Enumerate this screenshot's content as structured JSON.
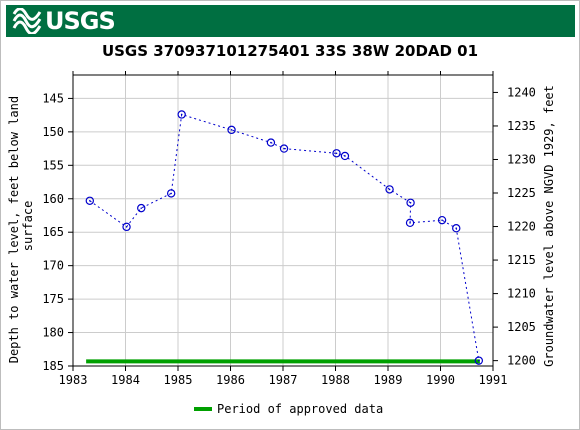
{
  "header": {
    "logo_text": "USGS",
    "brand_color": "#006f41"
  },
  "title": "USGS 370937101275401 33S 38W 20DAD 01",
  "chart_data": {
    "type": "line",
    "title": "USGS 370937101275401 33S 38W 20DAD 01",
    "xlabel": "",
    "ylabel": "Depth to water level, feet below land surface",
    "ylabel_right": "Groundwater level above NGVD 1929, feet",
    "xlim": [
      1983,
      1991
    ],
    "ylim": [
      185,
      141.5
    ],
    "ylim_right": [
      1199.2,
      1242.6
    ],
    "x_ticks": [
      1983,
      1984,
      1985,
      1986,
      1987,
      1988,
      1989,
      1990,
      1991
    ],
    "y_ticks": [
      145,
      150,
      155,
      160,
      165,
      170,
      175,
      180,
      185
    ],
    "y_ticks_right": [
      1240,
      1235,
      1230,
      1225,
      1220,
      1215,
      1210,
      1205,
      1200
    ],
    "grid": true,
    "series": [
      {
        "x": [
          1983.32,
          1984.02,
          1984.3,
          1984.87,
          1985.07,
          1986.02,
          1986.77,
          1987.02,
          1988.02,
          1988.18,
          1989.03,
          1989.43,
          1989.42,
          1990.03,
          1990.3,
          1990.73
        ],
        "y": [
          160.3,
          164.2,
          161.4,
          159.2,
          147.4,
          149.7,
          151.6,
          152.5,
          153.2,
          153.6,
          158.6,
          160.6,
          163.6,
          163.2,
          164.4,
          184.2
        ],
        "color": "#0000cc",
        "line_style": "dotted",
        "marker": "circle"
      }
    ],
    "approved_period": {
      "x": [
        1983.25,
        1990.75
      ],
      "y": 184.3,
      "color": "#00a000"
    },
    "legend": {
      "entries": [
        "Period of approved data"
      ],
      "placement": "bottom-center"
    }
  }
}
